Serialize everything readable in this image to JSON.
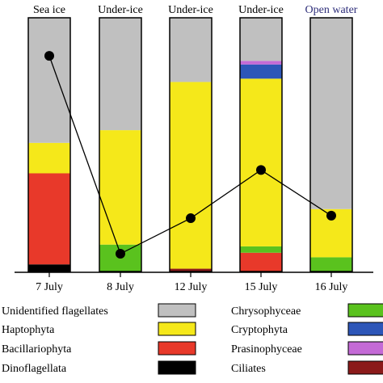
{
  "chart_data": {
    "type": "bar",
    "stacked": true,
    "percent": true,
    "categories": [
      "7 July",
      "8 July",
      "12 July",
      "15 July",
      "16 July"
    ],
    "bar_titles": [
      {
        "text": "Sea ice",
        "color": "#000000"
      },
      {
        "text": "Under-ice",
        "color": "#000000"
      },
      {
        "text": "Under-ice",
        "color": "#000000"
      },
      {
        "text": "Under-ice",
        "color": "#000000"
      },
      {
        "text": "Open water",
        "color": "#2e2e7a"
      }
    ],
    "ylim": [
      0,
      100
    ],
    "series": [
      {
        "name": "Dinoflagellata",
        "color": "#000000",
        "values": [
          2.8,
          0,
          0,
          0,
          0
        ]
      },
      {
        "name": "Bacillariophyta",
        "color": "#e8392a",
        "values": [
          35.9,
          0,
          0,
          7.4,
          0
        ]
      },
      {
        "name": "Prasinophyceae",
        "color": "#c46ad6",
        "values": [
          0,
          0,
          0,
          0,
          0
        ]
      },
      {
        "name": "Chrysophyceae",
        "color": "#5ac21e",
        "values": [
          0,
          10.6,
          0,
          2.5,
          5.6
        ]
      },
      {
        "name": "Ciliates",
        "color": "#8b1a1a",
        "values": [
          0,
          0,
          1.1,
          0,
          0
        ]
      },
      {
        "name": "Haptophyta",
        "color": "#f5e81a",
        "values": [
          12.0,
          45.1,
          73.6,
          66.1,
          19.0
        ]
      },
      {
        "name": "Cryptophyta",
        "color": "#2d56b8",
        "values": [
          0,
          0,
          0,
          5.6,
          0
        ]
      },
      {
        "name": "Prasinophyceae",
        "color": "#c46ad6",
        "values": [
          0,
          0,
          0,
          1.4,
          0
        ]
      },
      {
        "name": "Unidentified flagellates",
        "color": "#c0c0c0",
        "values": [
          49.3,
          44.3,
          25.3,
          17.0,
          75.4
        ]
      }
    ],
    "line": {
      "values": [
        85,
        7,
        21,
        40,
        22
      ],
      "color": "#000000"
    },
    "legend": {
      "left": [
        {
          "label": "Unidentified flagellates",
          "color": "#c0c0c0"
        },
        {
          "label": "Haptophyta",
          "color": "#f5e81a"
        },
        {
          "label": "Bacillariophyta",
          "color": "#e8392a"
        },
        {
          "label": "Dinoflagellata",
          "color": "#000000"
        }
      ],
      "right": [
        {
          "label": "Chrysophyceae",
          "color": "#5ac21e"
        },
        {
          "label": "Cryptophyta",
          "color": "#2d56b8"
        },
        {
          "label": "Prasinophyceae",
          "color": "#c46ad6"
        },
        {
          "label": "Ciliates",
          "color": "#8b1a1a"
        }
      ]
    }
  }
}
